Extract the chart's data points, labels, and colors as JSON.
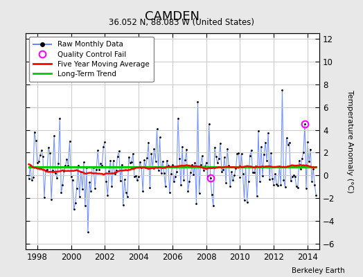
{
  "title": "CAMDEN",
  "subtitle": "36.052 N, 88.083 W (United States)",
  "credit": "Berkeley Earth",
  "ylabel": "Temperature Anomaly (°C)",
  "xlim": [
    1997.3,
    2014.7
  ],
  "ylim": [
    -6.5,
    12.5
  ],
  "yticks": [
    -6,
    -4,
    -2,
    0,
    2,
    4,
    6,
    8,
    10,
    12
  ],
  "xticks": [
    1998,
    2000,
    2002,
    2004,
    2006,
    2008,
    2010,
    2012,
    2014
  ],
  "bg_color": "#e8e8e8",
  "plot_bg": "#ffffff",
  "grid_color": "#cccccc",
  "line_color": "#6688ff",
  "ma_color": "#ff0000",
  "trend_color": "#00cc00",
  "qc_color": "#ff00ff",
  "seed": 12345,
  "start_year": 1997,
  "end_year": 2014
}
